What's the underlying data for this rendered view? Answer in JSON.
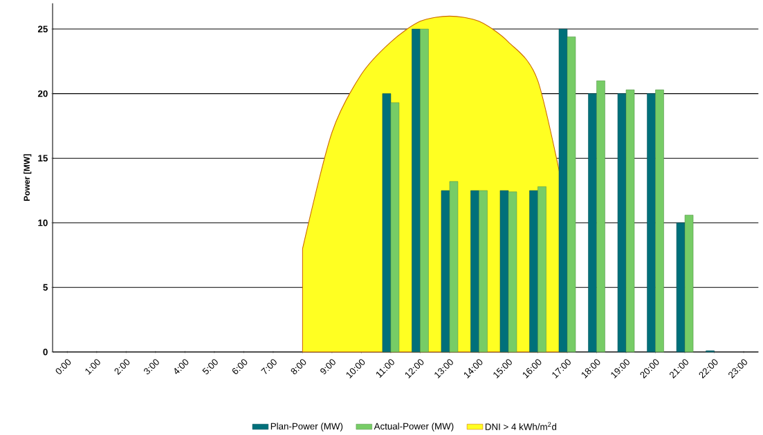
{
  "chart_data": {
    "type": "bar",
    "ylabel": "Power [MW]",
    "categories": [
      "0:00",
      "1:00",
      "2:00",
      "3:00",
      "4:00",
      "5:00",
      "6:00",
      "7:00",
      "8:00",
      "9:00",
      "10:00",
      "11:00",
      "12:00",
      "13:00",
      "14:00",
      "15:00",
      "16:00",
      "17:00",
      "18:00",
      "19:00",
      "20:00",
      "21:00",
      "22:00",
      "23:00"
    ],
    "series": [
      {
        "name": "DNI > 4  kWh/m$^{2}$d",
        "type": "area",
        "color": "#ffff22",
        "values": [
          null,
          null,
          null,
          null,
          null,
          null,
          null,
          null,
          8,
          17,
          21.5,
          24,
          25.6,
          26,
          25.6,
          24,
          21,
          11,
          null,
          null,
          null,
          null,
          null,
          null
        ]
      },
      {
        "name": "Plan-Power (MW)",
        "color": "#00707a",
        "values": [
          null,
          null,
          null,
          null,
          null,
          null,
          null,
          null,
          null,
          null,
          null,
          20,
          25,
          12.5,
          12.5,
          12.5,
          12.5,
          25,
          20,
          20,
          20,
          10,
          0.1,
          null
        ]
      },
      {
        "name": "Actual-Power (MW)",
        "color": "#77cc66",
        "values": [
          null,
          null,
          null,
          null,
          null,
          null,
          null,
          null,
          null,
          null,
          null,
          19.3,
          25,
          13.2,
          12.5,
          12.4,
          12.8,
          24.4,
          21,
          20.3,
          20.3,
          10.6,
          null,
          null
        ]
      }
    ],
    "ylim": [
      0,
      27
    ],
    "yticks": [
      0,
      5,
      10,
      15,
      20,
      25
    ],
    "grid": "y",
    "legend": "bottom"
  }
}
